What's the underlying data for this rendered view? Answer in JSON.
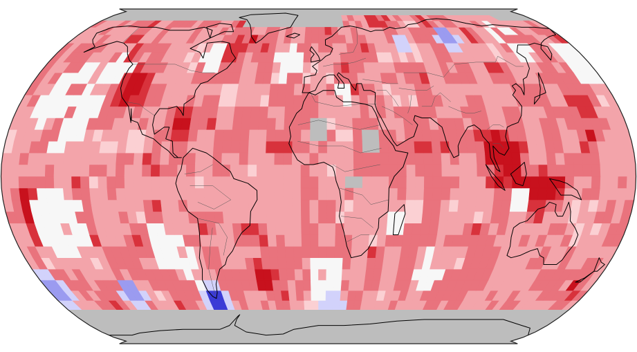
{
  "map": {
    "projection": "robinson",
    "colors": {
      "missing": "#bdbdbd",
      "near_avg": "#f7f7f7",
      "warm_1": "#fbd0d3",
      "warm_2": "#f3a4aa",
      "warm_3": "#e9737d",
      "warm_4": "#d8323c",
      "warm_5": "#c8111d",
      "cool_1": "#d2d2fb",
      "cool_2": "#9b9bf0",
      "cool_3": "#3b3bd6",
      "coast": "#000000",
      "border": "#555555"
    },
    "cell_deg": 5
  }
}
